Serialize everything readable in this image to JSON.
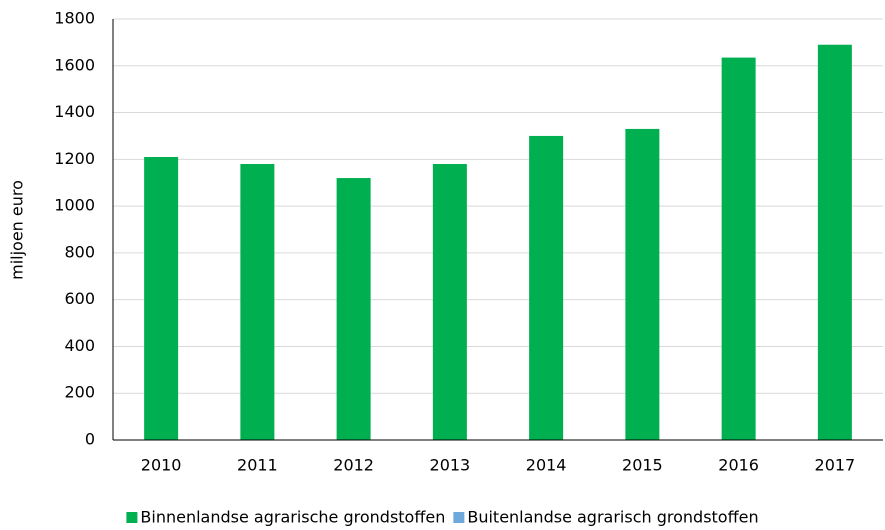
{
  "chart_data": {
    "type": "stacked_bar",
    "y_axis_label": "miljoen euro",
    "categories": [
      "2010",
      "2011",
      "2012",
      "2013",
      "2014",
      "2015",
      "2016",
      "2017"
    ],
    "series": [
      {
        "name": "Binnenlandse agrarische grondstoffen",
        "color": "#00b050",
        "values": [
          1210,
          1180,
          1120,
          1180,
          1300,
          1330,
          1635,
          1690
        ]
      },
      {
        "name": "Buitenlandse agrarisch grondstoffen",
        "color": "#6fa8dc",
        "values": [
          0,
          0,
          0,
          0,
          0,
          0,
          0,
          0
        ]
      }
    ],
    "ylim": [
      0,
      1800
    ],
    "yticks": [
      0,
      200,
      400,
      600,
      800,
      1000,
      1200,
      1400,
      1600,
      1800
    ],
    "grid": true,
    "legend": "bottom"
  }
}
